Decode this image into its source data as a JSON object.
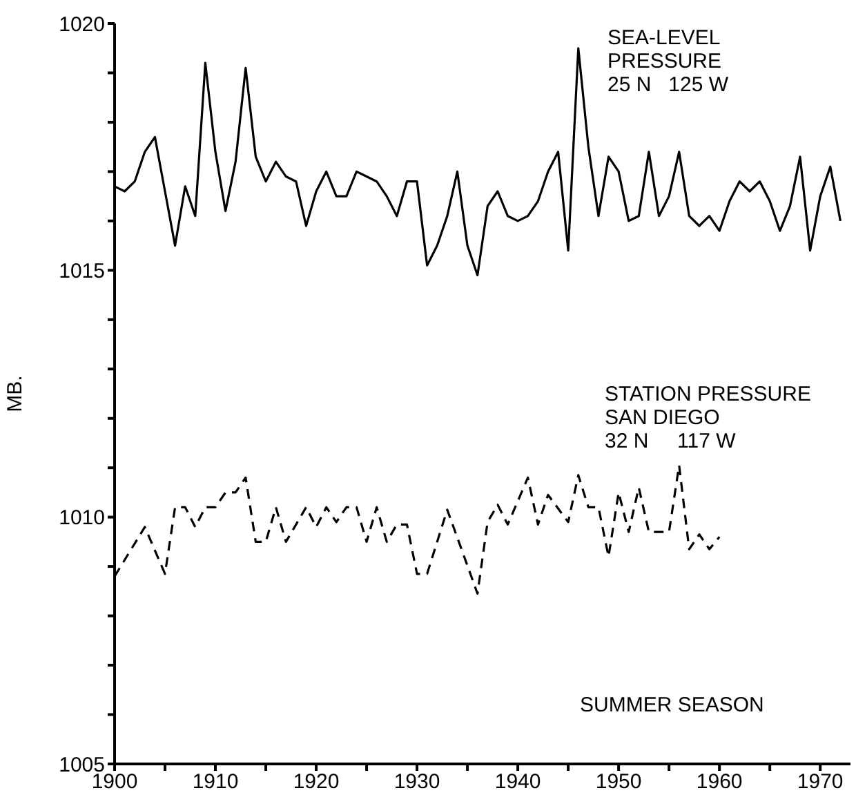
{
  "chart_data": {
    "type": "line",
    "ylabel": "MB.",
    "xlim": [
      1900,
      1973
    ],
    "xticks": [
      1900,
      {
        "value": 1905,
        "label": null
      },
      1910,
      {
        "value": 1915,
        "label": null
      },
      1920,
      {
        "value": 1925,
        "label": null
      },
      1930,
      {
        "value": 1935,
        "label": null
      },
      1940,
      {
        "value": 1945,
        "label": null
      },
      1950,
      {
        "value": 1955,
        "label": null
      },
      1960,
      {
        "value": 1965,
        "label": null
      },
      1970
    ],
    "ylim": [
      1005,
      1020
    ],
    "yticks": [
      1005,
      {
        "value": 1006,
        "label": null
      },
      {
        "value": 1007,
        "label": null
      },
      {
        "value": 1008,
        "label": null
      },
      {
        "value": 1009,
        "label": null
      },
      1010,
      {
        "value": 1011,
        "label": null
      },
      {
        "value": 1012,
        "label": null
      },
      {
        "value": 1013,
        "label": null
      },
      {
        "value": 1014,
        "label": null
      },
      1015,
      {
        "value": 1016,
        "label": null
      },
      {
        "value": 1017,
        "label": null
      },
      {
        "value": 1018,
        "label": null
      },
      {
        "value": 1019,
        "label": null
      },
      1020
    ],
    "grid": false,
    "legend": false,
    "marker": "none",
    "series": [
      {
        "color": "#000000",
        "line_style": "solid",
        "x": [
          1900,
          1901,
          1902,
          1903,
          1904,
          1905,
          1906,
          1907,
          1908,
          1909,
          1910,
          1911,
          1912,
          1913,
          1914,
          1915,
          1916,
          1917,
          1918,
          1919,
          1920,
          1921,
          1922,
          1923,
          1924,
          1925,
          1926,
          1927,
          1928,
          1929,
          1930,
          1931,
          1932,
          1933,
          1934,
          1935,
          1936,
          1937,
          1938,
          1939,
          1940,
          1941,
          1942,
          1943,
          1944,
          1945,
          1946,
          1947,
          1948,
          1949,
          1950,
          1951,
          1952,
          1953,
          1954,
          1955,
          1956,
          1957,
          1958,
          1959,
          1960,
          1961,
          1962,
          1963,
          1964,
          1965,
          1966,
          1967,
          1968,
          1969,
          1970,
          1971,
          1972
        ],
        "values": [
          1016.7,
          1016.6,
          1016.8,
          1017.4,
          1017.7,
          1016.6,
          1015.5,
          1016.7,
          1016.1,
          1019.2,
          1017.4,
          1016.2,
          1017.2,
          1019.1,
          1017.3,
          1016.8,
          1017.2,
          1016.9,
          1016.8,
          1015.9,
          1016.6,
          1017.0,
          1016.5,
          1016.5,
          1017.0,
          1016.9,
          1016.8,
          1016.5,
          1016.1,
          1016.8,
          1016.8,
          1015.1,
          1015.5,
          1016.1,
          1017.0,
          1015.5,
          1014.9,
          1016.3,
          1016.6,
          1016.1,
          1016.0,
          1016.1,
          1016.4,
          1017.0,
          1017.4,
          1015.4,
          1019.5,
          1017.5,
          1016.1,
          1017.3,
          1017.0,
          1016.0,
          1016.1,
          1017.4,
          1016.1,
          1016.5,
          1017.4,
          1016.1,
          1015.9,
          1016.1,
          1015.8,
          1016.4,
          1016.8,
          1016.6,
          1016.8,
          1016.4,
          1015.8,
          1016.3,
          1017.3,
          1015.4,
          1016.5,
          1017.1,
          1016.0
        ]
      },
      {
        "color": "#000000",
        "line_style": "dashed",
        "x": [
          1900,
          1903,
          1905,
          1906,
          1907,
          1908,
          1909,
          1910,
          1911,
          1912,
          1913,
          1914,
          1915,
          1916,
          1917,
          1919,
          1920,
          1921,
          1922,
          1923,
          1924,
          1925,
          1926,
          1927,
          1928,
          1929,
          1930,
          1931,
          1933,
          1936,
          1937,
          1938,
          1939,
          1941,
          1942,
          1943,
          1945,
          1946,
          1947,
          1948,
          1949,
          1950,
          1951,
          1952,
          1953,
          1955,
          1956,
          1957,
          1958,
          1959,
          1960
        ],
        "values": [
          1008.8,
          1009.8,
          1008.85,
          1010.2,
          1010.2,
          1009.8,
          1010.2,
          1010.2,
          1010.5,
          1010.5,
          1010.8,
          1009.5,
          1009.5,
          1010.2,
          1009.5,
          1010.2,
          1009.8,
          1010.2,
          1009.9,
          1010.2,
          1010.2,
          1009.5,
          1010.2,
          1009.5,
          1009.85,
          1009.85,
          1008.85,
          1008.85,
          1010.15,
          1008.45,
          1009.9,
          1010.25,
          1009.85,
          1010.8,
          1009.85,
          1010.45,
          1009.9,
          1010.85,
          1010.2,
          1010.2,
          1009.2,
          1010.5,
          1009.7,
          1010.6,
          1009.7,
          1009.7,
          1011.05,
          1009.35,
          1009.65,
          1009.35,
          1009.6
        ]
      }
    ],
    "annotations": [
      "SEA-LEVEL\nPRESSURE\n25 N   125 W",
      "STATION PRESSURE\nSAN DIEGO\n32 N     117 W",
      "SUMMER SEASON"
    ]
  }
}
